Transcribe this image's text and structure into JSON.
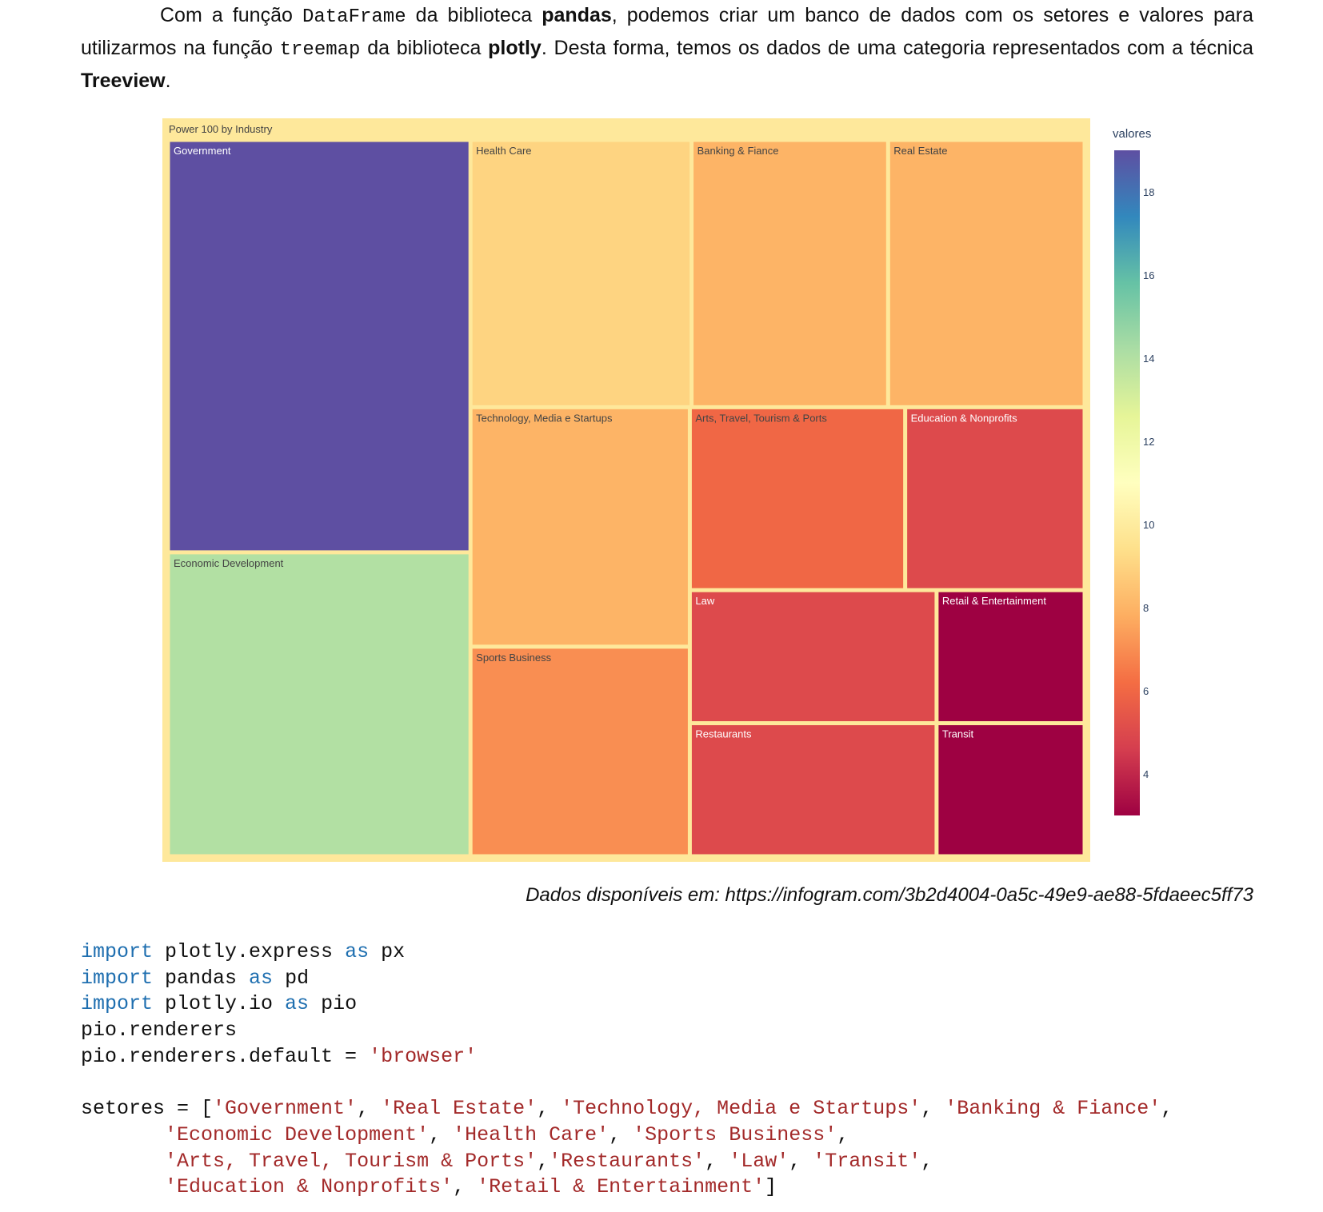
{
  "intro": {
    "p1": "Com a função ",
    "code1": "DataFrame",
    "p2": " da biblioteca ",
    "bold1": "pandas",
    "p3": ", podemos criar um banco de dados com os setores e valores para utilizarmos na função ",
    "code2": "treemap",
    "p4": " da biblioteca ",
    "bold2": "plotly",
    "p5": ". Desta forma, temos os dados de uma categoria representados com a técnica ",
    "bold3": "Treeview",
    "p6": "."
  },
  "chart_data": {
    "type": "treemap",
    "root": "Power 100 by Industry",
    "colorbar_title": "valores",
    "colorscale": "Spectral",
    "color_range": [
      3,
      19
    ],
    "colorbar_ticks": [
      4,
      6,
      8,
      10,
      12,
      14,
      16,
      18
    ],
    "colorscale_colors": [
      "#9e0142",
      "#d53e4f",
      "#f46d43",
      "#fdae61",
      "#fee08b",
      "#ffffbf",
      "#e6f598",
      "#abdda4",
      "#66c2a5",
      "#3288bd",
      "#5e4fa2"
    ],
    "labels": [
      "Government",
      "Health Care",
      "Banking & Fiance",
      "Real Estate",
      "Economic Development",
      "Technology, Media e Startups",
      "Arts, Travel, Tourism & Ports",
      "Education & Nonprofits",
      "Sports Business",
      "Law",
      "Retail & Entertainment",
      "Restaurants",
      "Transit"
    ],
    "values": [
      19,
      9,
      8,
      8,
      14,
      8,
      6,
      5,
      7,
      5,
      3,
      5,
      3
    ]
  },
  "caption": "Dados disponíveis em: https://infogram.com/3b2d4004-0a5c-49e9-ae88-5fdaeec5ff73",
  "code": {
    "imp1": "import",
    "t1": " plotly.express ",
    "as1": "as",
    "t2": " px",
    "imp2": "import",
    "t3": " pandas ",
    "as2": "as",
    "t4": " pd",
    "imp3": "import",
    "t5": " plotly.io ",
    "as3": "as",
    "t6": " pio",
    "l4": "pio.renderers",
    "l5a": "pio.renderers.default = ",
    "l5s": "'browser'",
    "l7a": "setores = [",
    "s1": "'Government'",
    "s2": "'Real Estate'",
    "s3": "'Technology, Media e Startups'",
    "s4": "'Banking & Fiance'",
    "s5": "'Economic Development'",
    "s6": "'Health Care'",
    "s7": "'Sports Business'",
    "s8": "'Arts, Travel, Tourism & Ports'",
    "s9": "'Restaurants'",
    "s10": "'Law'",
    "s11": "'Transit'",
    "s12": "'Education & Nonprofits'",
    "s13": "'Retail & Entertainment'",
    "close": "]",
    "sep": ", ",
    "sep_nospace": ",",
    "indent": "       "
  }
}
